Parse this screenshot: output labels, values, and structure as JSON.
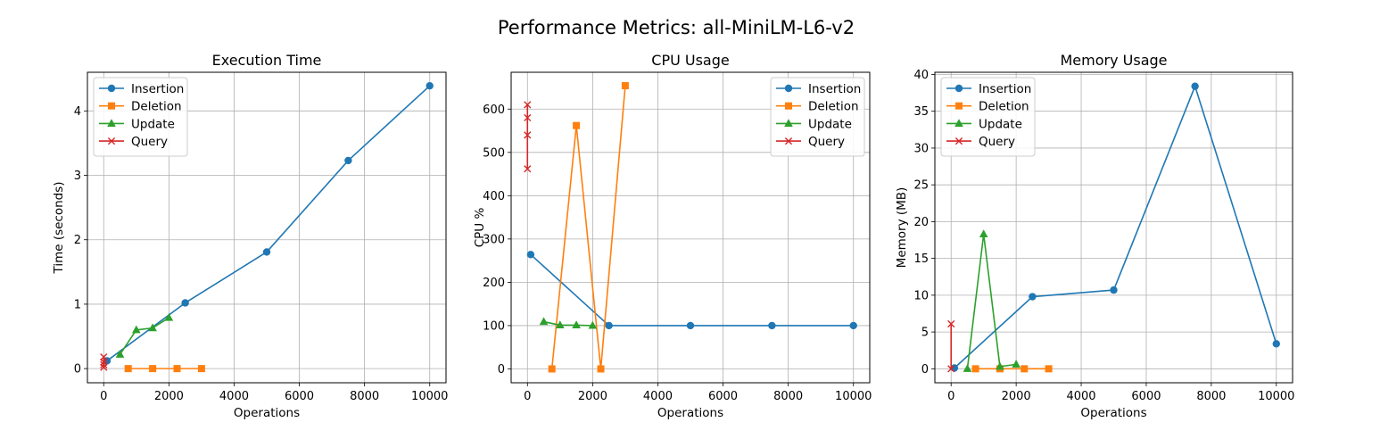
{
  "suptitle": "Performance Metrics: all-MiniLM-L6-v2",
  "colors": {
    "Insertion": "#1f77b4",
    "Deletion": "#ff7f0e",
    "Update": "#2ca02c",
    "Query": "#d62728",
    "grid": "#b0b0b0"
  },
  "chart_data": [
    {
      "type": "line",
      "title": "Execution Time",
      "xlabel": "Operations",
      "ylabel": "Time (seconds)",
      "xlim": [
        -500,
        10500
      ],
      "ylim": [
        -0.22,
        4.6
      ],
      "xticks": [
        0,
        2000,
        4000,
        6000,
        8000,
        10000
      ],
      "yticks": [
        0,
        1,
        2,
        3,
        4
      ],
      "grid": true,
      "legend": "upper left",
      "series": [
        {
          "name": "Insertion",
          "marker": "circle",
          "x": [
            100,
            2500,
            5000,
            7500,
            10000
          ],
          "y": [
            0.12,
            1.02,
            1.81,
            3.23,
            4.39
          ]
        },
        {
          "name": "Deletion",
          "marker": "square",
          "x": [
            750,
            1500,
            2250,
            3000
          ],
          "y": [
            0.0,
            0.0,
            0.0,
            0.0
          ]
        },
        {
          "name": "Update",
          "marker": "triangle",
          "x": [
            500,
            1000,
            1500,
            2000
          ],
          "y": [
            0.22,
            0.6,
            0.63,
            0.79
          ]
        },
        {
          "name": "Query",
          "marker": "x",
          "x": [
            0,
            0,
            0,
            0
          ],
          "y": [
            0.18,
            0.1,
            0.06,
            0.02
          ]
        }
      ]
    },
    {
      "type": "line",
      "title": "CPU Usage",
      "xlabel": "Operations",
      "ylabel": "CPU %",
      "xlim": [
        -500,
        10500
      ],
      "ylim": [
        -32,
        685
      ],
      "xticks": [
        0,
        2000,
        4000,
        6000,
        8000,
        10000
      ],
      "yticks": [
        0,
        100,
        200,
        300,
        400,
        500,
        600
      ],
      "grid": true,
      "legend": "upper right",
      "series": [
        {
          "name": "Insertion",
          "marker": "circle",
          "x": [
            100,
            2500,
            5000,
            7500,
            10000
          ],
          "y": [
            264,
            100,
            100,
            100,
            100
          ]
        },
        {
          "name": "Deletion",
          "marker": "square",
          "x": [
            750,
            1500,
            2250,
            3000
          ],
          "y": [
            0,
            562,
            0,
            654
          ]
        },
        {
          "name": "Update",
          "marker": "triangle",
          "x": [
            500,
            1000,
            1500,
            2000
          ],
          "y": [
            109,
            101,
            101,
            100
          ]
        },
        {
          "name": "Query",
          "marker": "x",
          "x": [
            0,
            0,
            0,
            0
          ],
          "y": [
            610,
            580,
            540,
            462
          ]
        }
      ]
    },
    {
      "type": "line",
      "title": "Memory Usage",
      "xlabel": "Operations",
      "ylabel": "Memory (MB)",
      "xlim": [
        -500,
        10500
      ],
      "ylim": [
        -1.9,
        40.3
      ],
      "xticks": [
        0,
        2000,
        4000,
        6000,
        8000,
        10000
      ],
      "yticks": [
        0,
        5,
        10,
        15,
        20,
        25,
        30,
        35,
        40
      ],
      "grid": true,
      "legend": "upper left",
      "series": [
        {
          "name": "Insertion",
          "marker": "circle",
          "x": [
            100,
            2500,
            5000,
            7500,
            10000
          ],
          "y": [
            0.1,
            9.8,
            10.7,
            38.4,
            3.4
          ]
        },
        {
          "name": "Deletion",
          "marker": "square",
          "x": [
            750,
            1500,
            2250,
            3000
          ],
          "y": [
            0.0,
            0.0,
            0.0,
            0.0
          ]
        },
        {
          "name": "Update",
          "marker": "triangle",
          "x": [
            500,
            1000,
            1500,
            2000
          ],
          "y": [
            0.0,
            18.3,
            0.3,
            0.6
          ]
        },
        {
          "name": "Query",
          "marker": "x",
          "x": [
            0,
            0
          ],
          "y": [
            6.1,
            0.0
          ]
        }
      ]
    }
  ]
}
